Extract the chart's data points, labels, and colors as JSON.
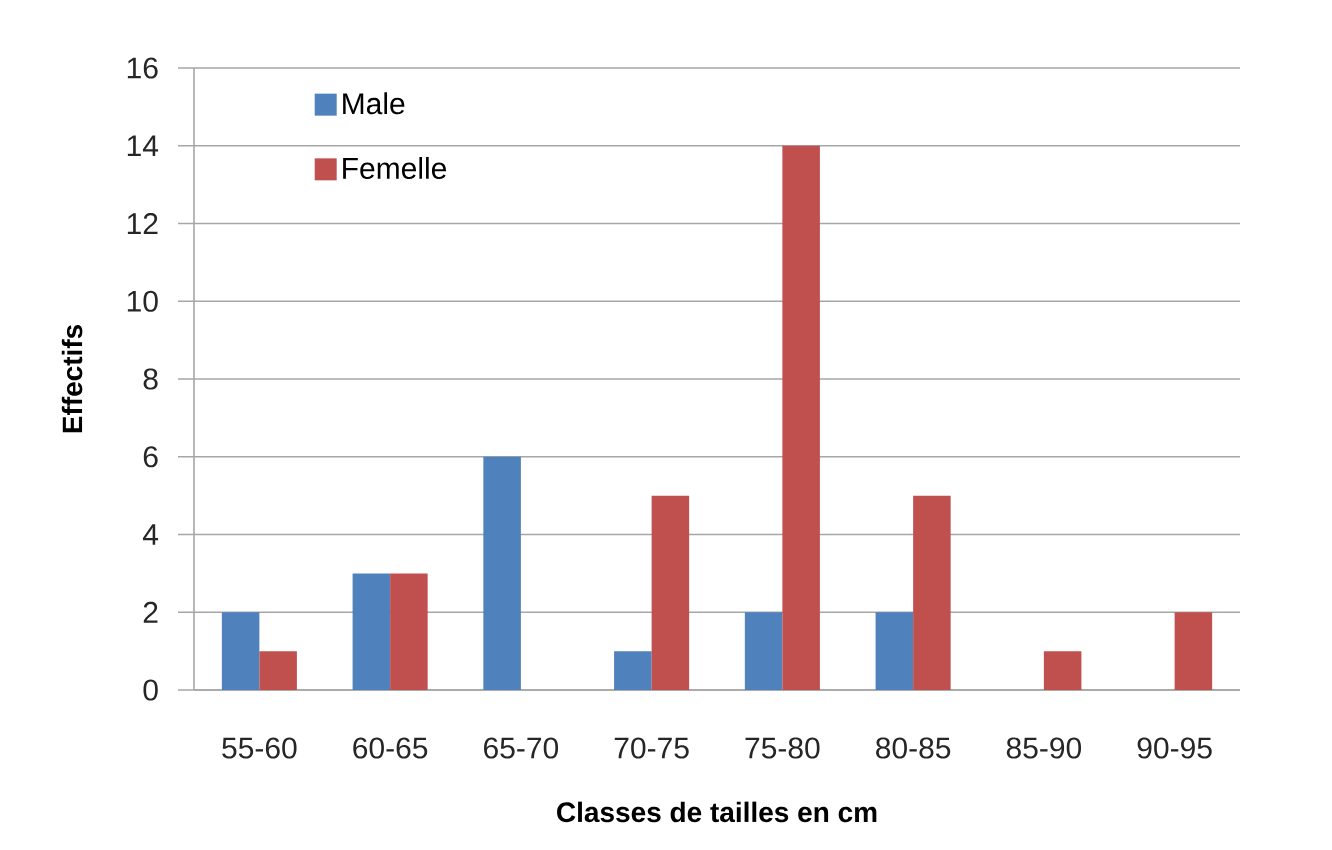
{
  "chart_data": {
    "type": "bar",
    "categories": [
      "55-60",
      "60-65",
      "65-70",
      "70-75",
      "75-80",
      "80-85",
      "85-90",
      "90-95"
    ],
    "series": [
      {
        "name": "Male",
        "color": "#4f81bd",
        "values": [
          2,
          3,
          6,
          1,
          2,
          2,
          0,
          0
        ]
      },
      {
        "name": "Femelle",
        "color": "#c0504d",
        "values": [
          1,
          3,
          0,
          5,
          14,
          5,
          1,
          2
        ]
      }
    ],
    "xlabel": "Classes de tailles en cm",
    "ylabel": "Effectifs",
    "ylim": [
      0,
      16
    ],
    "yticks": [
      0,
      2,
      4,
      6,
      8,
      10,
      12,
      14,
      16
    ],
    "grid": "y",
    "legend": "top left"
  }
}
